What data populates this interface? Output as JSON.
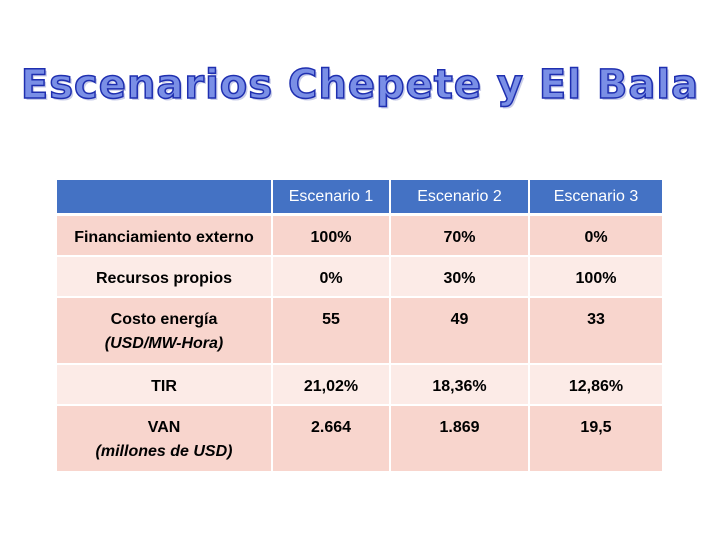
{
  "title": "Escenarios Chepete y El Bala",
  "table": {
    "headers": [
      "",
      "Escenario 1",
      "Escenario 2",
      "Escenario 3"
    ],
    "rows": [
      {
        "label": "Financiamiento externo",
        "unit": "",
        "values": [
          "100%",
          "70%",
          "0%"
        ]
      },
      {
        "label": "Recursos propios",
        "unit": "",
        "values": [
          "0%",
          "30%",
          "100%"
        ]
      },
      {
        "label": "Costo energía",
        "unit": "(USD/MW-Hora)",
        "values": [
          "55",
          "49",
          "33"
        ]
      },
      {
        "label": "TIR",
        "unit": "",
        "values": [
          "21,02%",
          "18,36%",
          "12,86%"
        ]
      },
      {
        "label": "VAN",
        "unit": "(millones de USD)",
        "values": [
          "2.664",
          "1.869",
          "19,5"
        ]
      }
    ]
  },
  "colors": {
    "header_bg": "#4472c4",
    "row_dark": "#f8d5cd",
    "row_light": "#fcebe7",
    "title_fill": "#7a8fe6",
    "title_outline": "#1f2fb0"
  }
}
